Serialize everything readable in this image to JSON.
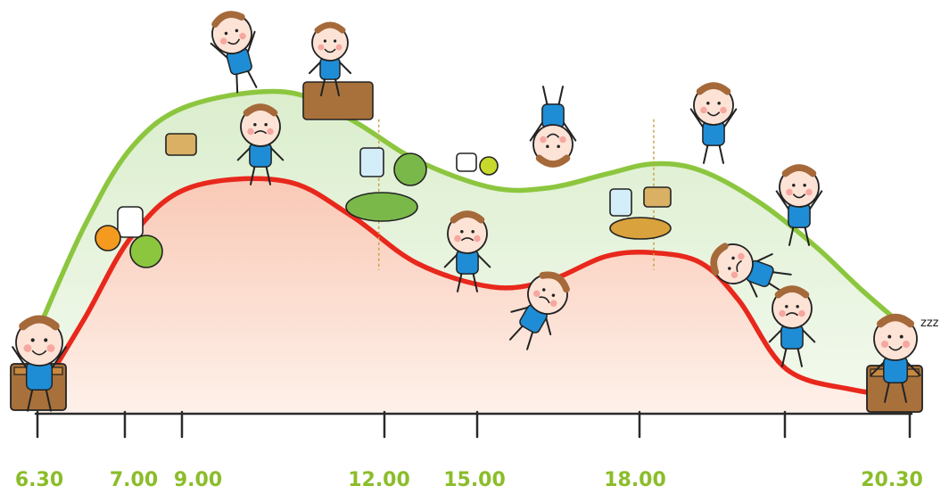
{
  "chart_data": {
    "type": "area",
    "title": "",
    "xlabel": "",
    "ylabel": "",
    "grid": false,
    "legend": "none",
    "tick_labels": [
      "6.30",
      "7.00",
      "9.00",
      "12.00",
      "15.00",
      "18.00",
      "20.30"
    ],
    "tick_color": "#8bbd2a",
    "series": [
      {
        "color": "#8cc63f",
        "fill": "#e6f2dc",
        "points": [
          [
            0.0,
            0.24
          ],
          [
            0.5,
            0.55
          ],
          [
            1.0,
            0.78
          ],
          [
            1.6,
            0.9
          ],
          [
            2.6,
            0.94
          ],
          [
            3.3,
            0.86
          ],
          [
            4.0,
            0.74
          ],
          [
            4.8,
            0.66
          ],
          [
            5.4,
            0.66
          ],
          [
            6.0,
            0.7
          ],
          [
            6.5,
            0.73
          ],
          [
            7.0,
            0.71
          ],
          [
            7.6,
            0.62
          ],
          [
            8.2,
            0.49
          ],
          [
            8.7,
            0.36
          ],
          [
            9.2,
            0.24
          ]
        ]
      },
      {
        "color": "#e8281c",
        "fill": "#fbe0d6",
        "points": [
          [
            0.0,
            0.05
          ],
          [
            0.5,
            0.28
          ],
          [
            1.0,
            0.52
          ],
          [
            1.6,
            0.66
          ],
          [
            2.6,
            0.68
          ],
          [
            3.3,
            0.58
          ],
          [
            4.0,
            0.44
          ],
          [
            4.8,
            0.37
          ],
          [
            5.4,
            0.39
          ],
          [
            6.0,
            0.46
          ],
          [
            6.5,
            0.47
          ],
          [
            7.0,
            0.44
          ],
          [
            7.4,
            0.33
          ],
          [
            7.9,
            0.13
          ],
          [
            8.6,
            0.07
          ],
          [
            9.2,
            0.05
          ]
        ]
      }
    ],
    "markers": [
      {
        "x": 3.6,
        "label": ""
      },
      {
        "x": 6.5,
        "label": ""
      }
    ],
    "illustrations": [
      "child-sleeping-icon",
      "juice-cup-icon",
      "orange-icon",
      "cereal-bowl-icon",
      "lunchbox-icon",
      "child-jumping-icon",
      "child-thinking-icon",
      "child-at-desk-icon",
      "lunch-plate-icon",
      "water-glass-icon",
      "child-tired-icon",
      "yogurt-snack-icon",
      "child-handstand-icon",
      "child-falling-icon",
      "dinner-bowl-icon",
      "child-cheering-icon",
      "child-crawling-icon",
      "child-yawning-icon",
      "child-going-to-bed-icon"
    ]
  }
}
